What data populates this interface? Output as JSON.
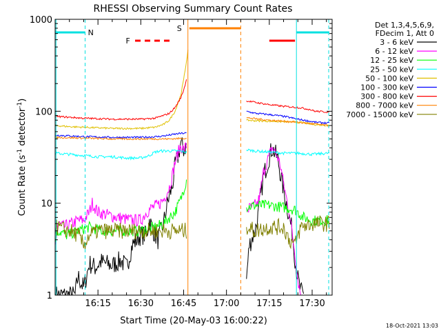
{
  "chart_data": {
    "type": "line",
    "title": "RHESSI Observing Summary Count Rates",
    "xlabel": "Start Time (20-May-03 16:00:22)",
    "ylabel": "Count Rate (s",
    "ylabel_sup": "-1",
    "ylabel_mid": " detector",
    "ylabel_end": ")",
    "x_range_min": [
      0.0,
      97.0
    ],
    "y_log": true,
    "ylim": [
      1,
      1000
    ],
    "x_ticks": [
      {
        "x": 15,
        "label": "16:15"
      },
      {
        "x": 30,
        "label": "16:30"
      },
      {
        "x": 45,
        "label": "16:45"
      },
      {
        "x": 60,
        "label": "17:00"
      },
      {
        "x": 75,
        "label": "17:15"
      },
      {
        "x": 90,
        "label": "17:30"
      }
    ],
    "y_ticks": [
      {
        "v": 1,
        "label": "1"
      },
      {
        "v": 10,
        "label": "10"
      },
      {
        "v": 100,
        "label": "100"
      },
      {
        "v": 1000,
        "label": "1000"
      }
    ],
    "legend_header": [
      "Det 1,3,4,5,6,9,",
      "FDecim 1, Att 0"
    ],
    "footer_date": "18-Oct-2021 13:03",
    "flags": [
      {
        "label": "N",
        "color": "#00e0e0",
        "segments": [
          [
            0,
            10.5
          ],
          [
            84.5,
            96
          ]
        ],
        "label_x": 12.5
      },
      {
        "label": "F",
        "color": "#ff0000",
        "dashed_segment": [
          28,
          41
        ],
        "segments": [
          [
            75,
            84
          ]
        ],
        "label_x": 25.5
      },
      {
        "label": "S",
        "color": "#ff8000",
        "segments": [
          [
            47,
            65
          ]
        ],
        "label_x": 43.5
      }
    ],
    "vlines": [
      {
        "x": 0.3,
        "color": "#00e0e0",
        "dashed": false
      },
      {
        "x": 10.5,
        "color": "#00e0e0",
        "dashed": true
      },
      {
        "x": 84.5,
        "color": "#00e0e0",
        "dashed": false
      },
      {
        "x": 95.8,
        "color": "#00e0e0",
        "dashed": true
      },
      {
        "x": 46.5,
        "color": "#ff8000",
        "dashed": false
      },
      {
        "x": 65.0,
        "color": "#ff8000",
        "dashed": true
      }
    ],
    "series": [
      {
        "name": "3 - 6 keV",
        "color": "#000000",
        "noise": 0.22,
        "points": [
          [
            0,
            1.0
          ],
          [
            7,
            1.0
          ],
          [
            8,
            1.6
          ],
          [
            10,
            1.2
          ],
          [
            12,
            2.2
          ],
          [
            14,
            2.0
          ],
          [
            16,
            2.3
          ],
          [
            18,
            2.2
          ],
          [
            20,
            2.1
          ],
          [
            23,
            2.4
          ],
          [
            25,
            2.0
          ],
          [
            27,
            3.5
          ],
          [
            30,
            4.5
          ],
          [
            32,
            4.5
          ],
          [
            33,
            6.5
          ],
          [
            35,
            4.5
          ],
          [
            36,
            4.0
          ],
          [
            38,
            6.0
          ],
          [
            39,
            9.0
          ],
          [
            40,
            12
          ],
          [
            41,
            15
          ],
          [
            42,
            25
          ],
          [
            43,
            32
          ],
          [
            44,
            45
          ],
          [
            45,
            38
          ],
          [
            46,
            43
          ],
          null,
          [
            67,
            1.5
          ],
          [
            68,
            3.5
          ],
          [
            70,
            5
          ],
          [
            71,
            7
          ],
          [
            72,
            12
          ],
          [
            73,
            20
          ],
          [
            74,
            25
          ],
          [
            75,
            32
          ],
          [
            76,
            40
          ],
          [
            77,
            35
          ],
          [
            78,
            30
          ],
          [
            79,
            20
          ],
          [
            80,
            14
          ],
          [
            81,
            10
          ],
          [
            82,
            7
          ],
          [
            83,
            5
          ],
          [
            84,
            2.5
          ],
          [
            85,
            1.5
          ],
          [
            86,
            1.1
          ],
          [
            87,
            1.0
          ]
        ]
      },
      {
        "name": "6 - 12 keV",
        "color": "#ff00ff",
        "noise": 0.14,
        "points": [
          [
            0,
            3.5
          ],
          [
            1,
            6.0
          ],
          [
            3,
            5.5
          ],
          [
            6,
            6.0
          ],
          [
            8,
            6.5
          ],
          [
            10,
            6.5
          ],
          [
            12,
            8.0
          ],
          [
            13,
            10
          ],
          [
            15,
            8.0
          ],
          [
            18,
            7.5
          ],
          [
            22,
            7.0
          ],
          [
            27,
            6.5
          ],
          [
            30,
            6.5
          ],
          [
            32,
            8.0
          ],
          [
            34,
            9.0
          ],
          [
            36,
            9.5
          ],
          [
            38,
            11
          ],
          [
            40,
            15
          ],
          [
            41,
            20
          ],
          [
            42,
            28
          ],
          [
            43,
            35
          ],
          [
            44,
            42
          ],
          [
            45,
            38
          ],
          [
            46,
            42
          ],
          null,
          [
            67,
            8.5
          ],
          [
            69,
            9.0
          ],
          [
            71,
            10
          ],
          [
            72,
            14
          ],
          [
            73,
            22
          ],
          [
            74,
            27
          ],
          [
            75,
            33
          ],
          [
            76,
            40
          ],
          [
            77,
            36
          ],
          [
            78,
            31
          ],
          [
            79,
            25
          ],
          [
            80,
            16
          ],
          [
            82,
            8
          ],
          [
            84,
            2.8
          ],
          [
            85,
            1.5
          ],
          [
            86,
            1.0
          ]
        ]
      },
      {
        "name": "12 - 25 keV",
        "color": "#00ff00",
        "noise": 0.12,
        "points": [
          [
            0,
            4.0
          ],
          [
            1,
            5.0
          ],
          [
            4,
            4.5
          ],
          [
            8,
            5.0
          ],
          [
            12,
            5.5
          ],
          [
            16,
            5.0
          ],
          [
            20,
            5.0
          ],
          [
            25,
            5.0
          ],
          [
            30,
            5.0
          ],
          [
            35,
            5.5
          ],
          [
            38,
            6.0
          ],
          [
            40,
            7.0
          ],
          [
            42,
            8.0
          ],
          [
            44,
            11
          ],
          [
            45,
            14
          ],
          [
            46,
            18
          ],
          null,
          [
            67,
            9.0
          ],
          [
            70,
            9.5
          ],
          [
            75,
            9.5
          ],
          [
            80,
            9.0
          ],
          [
            84,
            8.5
          ],
          [
            87,
            7.0
          ],
          [
            90,
            6.5
          ],
          [
            94,
            6.5
          ],
          [
            96,
            6.5
          ]
        ]
      },
      {
        "name": "25 - 50 keV",
        "color": "#00ffff",
        "noise": 0.03,
        "points": [
          [
            0,
            35
          ],
          [
            5,
            34
          ],
          [
            10,
            33
          ],
          [
            15,
            32
          ],
          [
            20,
            32
          ],
          [
            25,
            31
          ],
          [
            30,
            31
          ],
          [
            33,
            33
          ],
          [
            35,
            36
          ],
          [
            37,
            37
          ],
          [
            40,
            37
          ],
          [
            43,
            37
          ],
          [
            46,
            36
          ],
          null,
          [
            67,
            38
          ],
          [
            70,
            37
          ],
          [
            75,
            36
          ],
          [
            80,
            35
          ],
          [
            85,
            35
          ],
          [
            90,
            34
          ],
          [
            96,
            35
          ]
        ]
      },
      {
        "name": "50 - 100 keV",
        "color": "#e0c000",
        "noise": 0.02,
        "points": [
          [
            0,
            70
          ],
          [
            5,
            68
          ],
          [
            10,
            67
          ],
          [
            15,
            66
          ],
          [
            20,
            65
          ],
          [
            25,
            65
          ],
          [
            30,
            65
          ],
          [
            35,
            67
          ],
          [
            38,
            72
          ],
          [
            40,
            80
          ],
          [
            42,
            100
          ],
          [
            44,
            150
          ],
          [
            45,
            220
          ],
          [
            46,
            350
          ],
          [
            46.5,
            460
          ],
          null,
          [
            67,
            80
          ],
          [
            70,
            79
          ],
          [
            75,
            78
          ],
          [
            80,
            77
          ],
          [
            84,
            76
          ],
          [
            87,
            75
          ],
          [
            90,
            72
          ],
          [
            96,
            70
          ]
        ]
      },
      {
        "name": "100 - 300 keV",
        "color": "#0000ff",
        "noise": 0.02,
        "points": [
          [
            0,
            55
          ],
          [
            10,
            53
          ],
          [
            20,
            52
          ],
          [
            30,
            52
          ],
          [
            36,
            53
          ],
          [
            40,
            55
          ],
          [
            43,
            57
          ],
          [
            46,
            58
          ],
          null,
          [
            67,
            100
          ],
          [
            70,
            95
          ],
          [
            75,
            92
          ],
          [
            80,
            88
          ],
          [
            85,
            82
          ],
          [
            89,
            78
          ],
          [
            91,
            76
          ],
          [
            96,
            74
          ]
        ]
      },
      {
        "name": "300 - 800 keV",
        "color": "#ff0000",
        "noise": 0.02,
        "points": [
          [
            0,
            88
          ],
          [
            5,
            86
          ],
          [
            10,
            84
          ],
          [
            15,
            83
          ],
          [
            20,
            82
          ],
          [
            25,
            82
          ],
          [
            30,
            82
          ],
          [
            35,
            84
          ],
          [
            38,
            90
          ],
          [
            40,
            95
          ],
          [
            42,
            110
          ],
          [
            44,
            140
          ],
          [
            45,
            170
          ],
          [
            46,
            220
          ],
          null,
          [
            67,
            130
          ],
          [
            70,
            125
          ],
          [
            75,
            118
          ],
          [
            80,
            113
          ],
          [
            85,
            110
          ],
          [
            89,
            105
          ],
          [
            91,
            100
          ],
          [
            96,
            98
          ]
        ]
      },
      {
        "name": "800 - 7000 keV",
        "color": "#ff8000",
        "noise": 0.02,
        "points": [
          [
            0,
            52
          ],
          [
            10,
            51
          ],
          [
            20,
            50
          ],
          [
            30,
            50
          ],
          [
            40,
            50
          ],
          [
            46,
            51
          ],
          null,
          [
            67,
            85
          ],
          [
            70,
            83
          ],
          [
            75,
            80
          ],
          [
            80,
            78
          ],
          [
            85,
            76
          ],
          [
            90,
            73
          ],
          [
            96,
            70
          ]
        ]
      },
      {
        "name": "7000 - 15000 keV",
        "color": "#808000",
        "noise": 0.18,
        "points": [
          [
            0,
            5.5
          ],
          [
            5,
            5.0
          ],
          [
            8,
            4.5
          ],
          [
            10,
            3.5
          ],
          [
            12,
            4.5
          ],
          [
            15,
            5.0
          ],
          [
            20,
            5.0
          ],
          [
            25,
            5.0
          ],
          [
            30,
            5.0
          ],
          [
            35,
            5.0
          ],
          [
            40,
            5.0
          ],
          [
            46,
            5.0
          ],
          null,
          [
            67,
            5.5
          ],
          [
            70,
            5.0
          ],
          [
            75,
            5.5
          ],
          [
            80,
            5.5
          ],
          [
            82,
            4.0
          ],
          [
            84,
            3.5
          ],
          [
            86,
            5.5
          ],
          [
            90,
            6.0
          ],
          [
            96,
            6.0
          ]
        ]
      }
    ]
  }
}
